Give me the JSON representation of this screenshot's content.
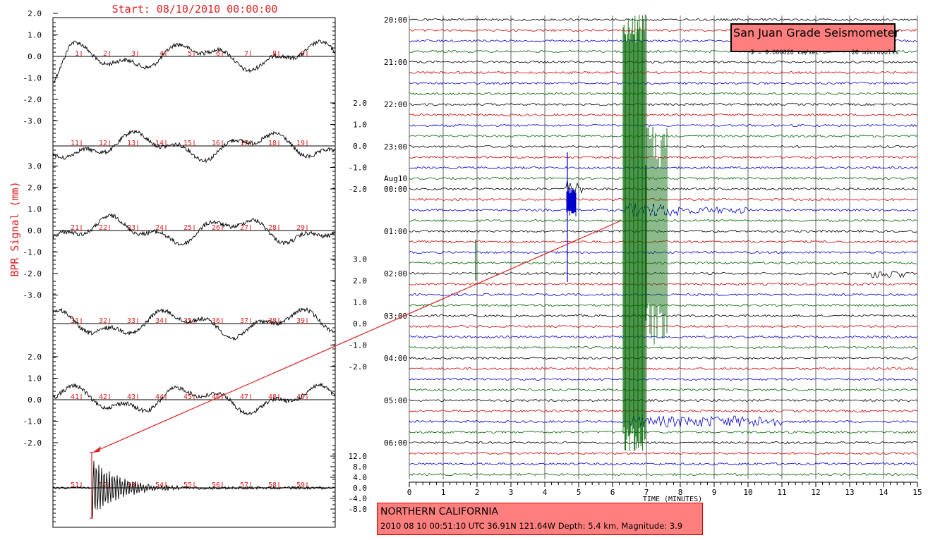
{
  "bpr": {
    "start_label": "Start: 08/10/2010 00:00:00",
    "ylabel": "BPR Signal (mm)",
    "panels": [
      {
        "side": "left",
        "ticks": [
          "2.0",
          "1.0",
          "0.0",
          "-1.0",
          "-2.0",
          "-3.0"
        ],
        "markers": [
          "1",
          "2",
          "3",
          "4",
          "5",
          "6",
          "7",
          "8",
          "9"
        ]
      },
      {
        "side": "right",
        "ticks": [
          "2.0",
          "1.0",
          "0.0",
          "-1.0",
          "-2.0"
        ],
        "markers": [
          "11",
          "12",
          "13",
          "14",
          "15",
          "16",
          "17",
          "18",
          "19"
        ]
      },
      {
        "side": "left",
        "ticks": [
          "3.0",
          "2.0",
          "1.0",
          "0.0",
          "-1.0",
          "-2.0",
          "-3.0"
        ],
        "markers": [
          "21",
          "22",
          "23",
          "24",
          "25",
          "26",
          "27",
          "28",
          "29"
        ]
      },
      {
        "side": "right",
        "ticks": [
          "3.0",
          "2.0",
          "1.0",
          "0.0",
          "-1.0",
          "-2.0"
        ],
        "markers": [
          "31",
          "32",
          "33",
          "34",
          "35",
          "36",
          "37",
          "38",
          "39"
        ]
      },
      {
        "side": "left",
        "ticks": [
          "2.0",
          "1.0",
          "0.0",
          "-1.0",
          "-2.0"
        ],
        "markers": [
          "41",
          "42",
          "43",
          "44",
          "45",
          "46",
          "47",
          "48",
          "49"
        ]
      },
      {
        "side": "right",
        "ticks": [
          "12.0",
          "8.0",
          "4.0",
          "0.0",
          "-4.0",
          "-8.0"
        ],
        "markers": [
          "51",
          "52",
          "53",
          "54",
          "55",
          "56",
          "57",
          "58",
          "59"
        ]
      }
    ]
  },
  "seismo": {
    "title": "San Juan Grade Seismometer",
    "scale_text": "= 0.000020 cm/sec =       20 microvolts",
    "xlabel": "TIME (MINUTES)",
    "hour_labels": [
      "20:00",
      "21:00",
      "22:00",
      "23:00",
      "Aug10",
      "00:00",
      "01:00",
      "02:00",
      "03:00",
      "04:00",
      "05:00",
      "06:00"
    ],
    "x_ticks": [
      "0",
      "1",
      "2",
      "3",
      "4",
      "5",
      "6",
      "7",
      "8",
      "9",
      "10",
      "11",
      "12",
      "13",
      "14",
      "15"
    ],
    "trace_colors": [
      "#000000",
      "#cc0000",
      "#0000cc",
      "#006600"
    ],
    "trace_count": 44
  },
  "event": {
    "region": "NORTHERN CALIFORNIA",
    "info": "2010 08 10 00:51:10 UTC 36.91N 121.64W Depth: 5.4 km, Magnitude: 3.9"
  },
  "chart_data": [
    {
      "type": "line",
      "title": "Start: 08/10/2010 00:00:00",
      "ylabel": "BPR Signal (mm)",
      "panels": 6,
      "minutes_per_panel": 10,
      "panel_y_ranges": [
        [
          -3.0,
          2.0
        ],
        [
          -2.0,
          2.0
        ],
        [
          -3.0,
          3.0
        ],
        [
          -2.0,
          3.0
        ],
        [
          -2.0,
          2.0
        ],
        [
          -8.0,
          12.0
        ]
      ]
    },
    {
      "type": "line",
      "title": "San Juan Grade Seismometer",
      "xlabel": "TIME (MINUTES)",
      "xlim": [
        0,
        15
      ],
      "rows": 44,
      "event_minutes_after_0050": 1.2
    }
  ]
}
